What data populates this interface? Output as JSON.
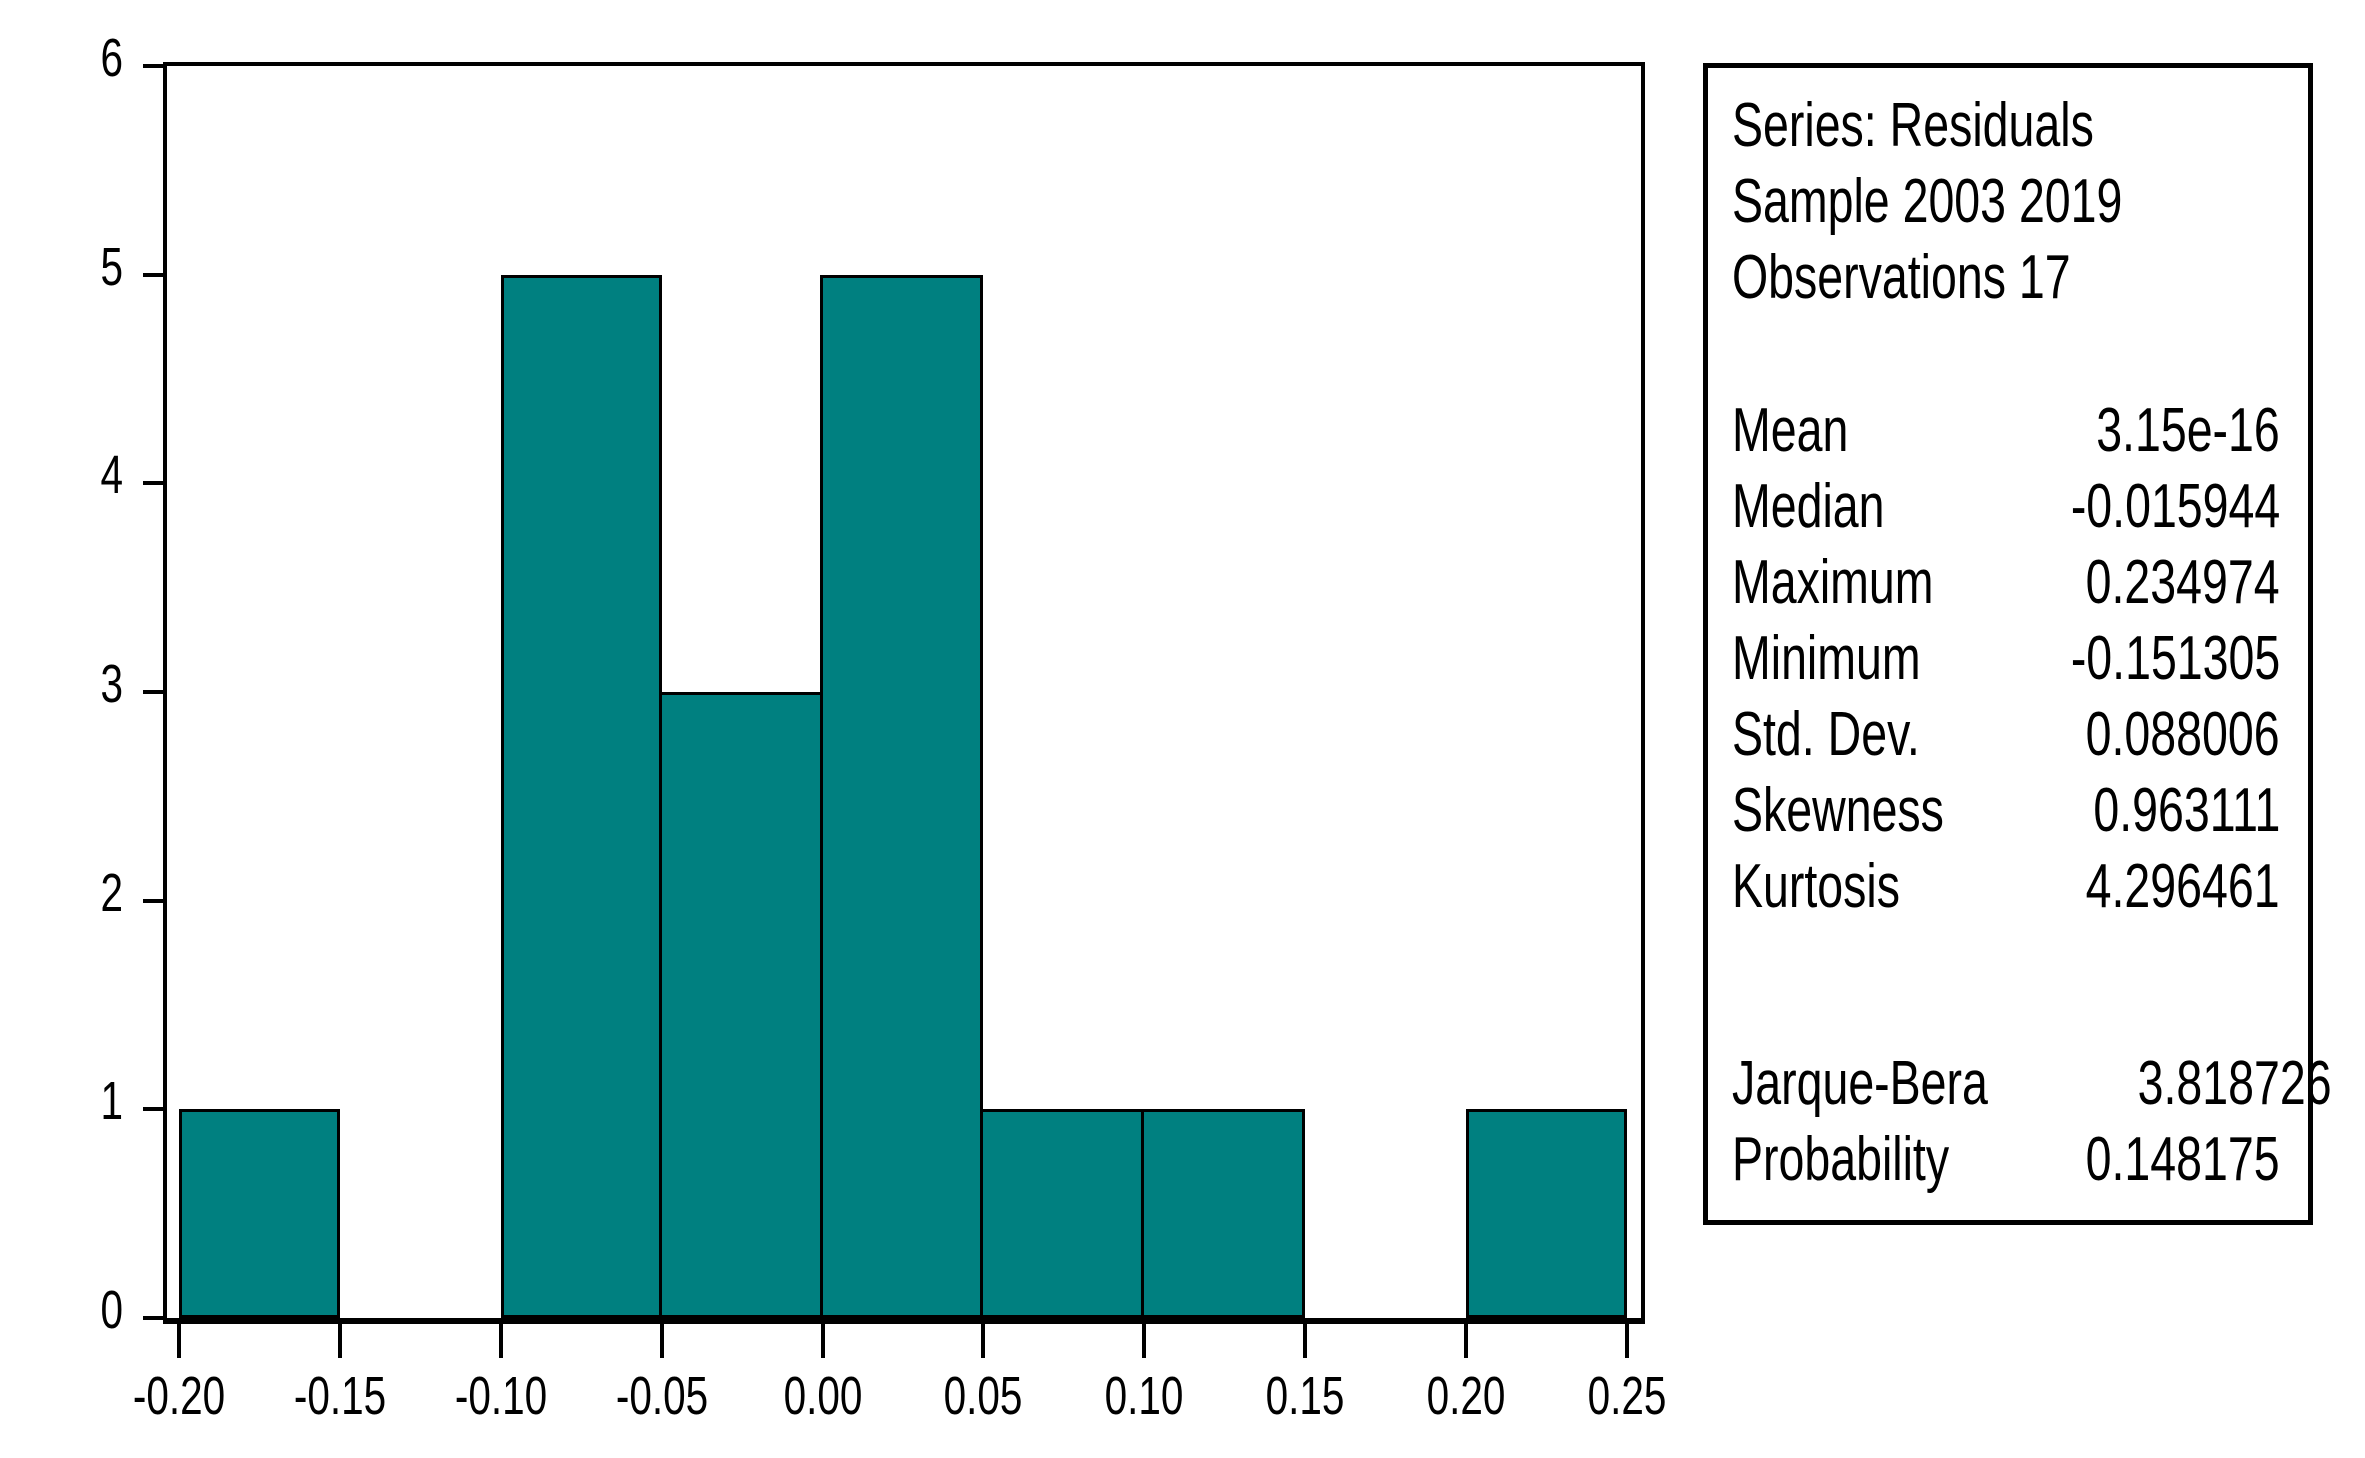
{
  "chart_data": {
    "type": "bar",
    "subtype": "histogram",
    "title": "",
    "xlabel": "",
    "ylabel": "",
    "bin_edges": [
      -0.2,
      -0.15,
      -0.1,
      -0.05,
      0.0,
      0.05,
      0.1,
      0.15,
      0.2,
      0.25
    ],
    "counts": [
      1,
      0,
      5,
      3,
      5,
      1,
      1,
      0,
      1
    ],
    "x_tick_labels": [
      "-0.20",
      "-0.15",
      "-0.10",
      "-0.05",
      "0.00",
      "0.05",
      "0.10",
      "0.15",
      "0.20",
      "0.25"
    ],
    "y_ticks": [
      0,
      1,
      2,
      3,
      4,
      5,
      6
    ],
    "xlim": [
      -0.2,
      0.25
    ],
    "ylim": [
      0,
      6
    ],
    "grid": "off",
    "legend": "none",
    "bar_color": "#008080",
    "bar_border_color": "#000000",
    "axis_color": "#000000"
  },
  "stats_panel": {
    "header_lines": [
      "Series: Residuals",
      "Sample 2003 2019",
      "Observations 17"
    ],
    "stats": [
      {
        "label": "Mean",
        "value": "3.15e-16"
      },
      {
        "label": "Median",
        "value": "-0.015944"
      },
      {
        "label": "Maximum",
        "value": "0.234974"
      },
      {
        "label": "Minimum",
        "value": "-0.151305"
      },
      {
        "label": "Std. Dev.",
        "value": "0.088006"
      },
      {
        "label": "Skewness",
        "value": "0.963111"
      },
      {
        "label": "Kurtosis",
        "value": "4.296461"
      }
    ],
    "tests": [
      {
        "label": "Jarque-Bera",
        "value": "3.818726"
      },
      {
        "label": "Probability",
        "value": "0.148175"
      }
    ]
  }
}
